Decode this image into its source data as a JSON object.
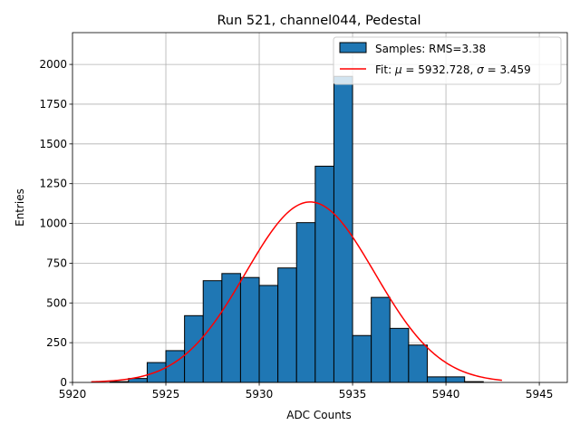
{
  "chart_data": {
    "type": "bar",
    "title": "Run 521, channel044, Pedestal",
    "xlabel": "ADC Counts",
    "ylabel": "Entries",
    "xlim": [
      5920,
      5946.5
    ],
    "ylim": [
      0,
      2200
    ],
    "xticks": [
      5920,
      5925,
      5930,
      5935,
      5940,
      5945
    ],
    "yticks": [
      0,
      250,
      500,
      750,
      1000,
      1250,
      1500,
      1750,
      2000
    ],
    "grid": true,
    "legend_position": "top-right",
    "bin_width": 1,
    "bins": [
      5922,
      5923,
      5924,
      5925,
      5926,
      5927,
      5928,
      5929,
      5930,
      5931,
      5932,
      5933,
      5934,
      5935,
      5936,
      5937,
      5938,
      5939,
      5940,
      5941
    ],
    "counts": [
      5,
      25,
      125,
      200,
      420,
      640,
      685,
      660,
      610,
      720,
      1005,
      1360,
      1925,
      295,
      535,
      340,
      235,
      35,
      35,
      5
    ],
    "bar_color": "#1f77b4",
    "fit": {
      "mu": 5932.728,
      "sigma": 3.459,
      "amplitude": 1135,
      "x_range": [
        5921,
        5943
      ],
      "color": "#ff0000"
    },
    "legend": [
      {
        "label": "Samples: RMS=3.38",
        "kind": "patch",
        "color": "#1f77b4"
      },
      {
        "label_prefix": "Fit: ",
        "mu_symbol": "μ",
        "mu_text": " = 5932.728, ",
        "sigma_symbol": "σ",
        "sigma_text": " = 3.459",
        "kind": "line",
        "color": "#ff0000"
      }
    ]
  }
}
